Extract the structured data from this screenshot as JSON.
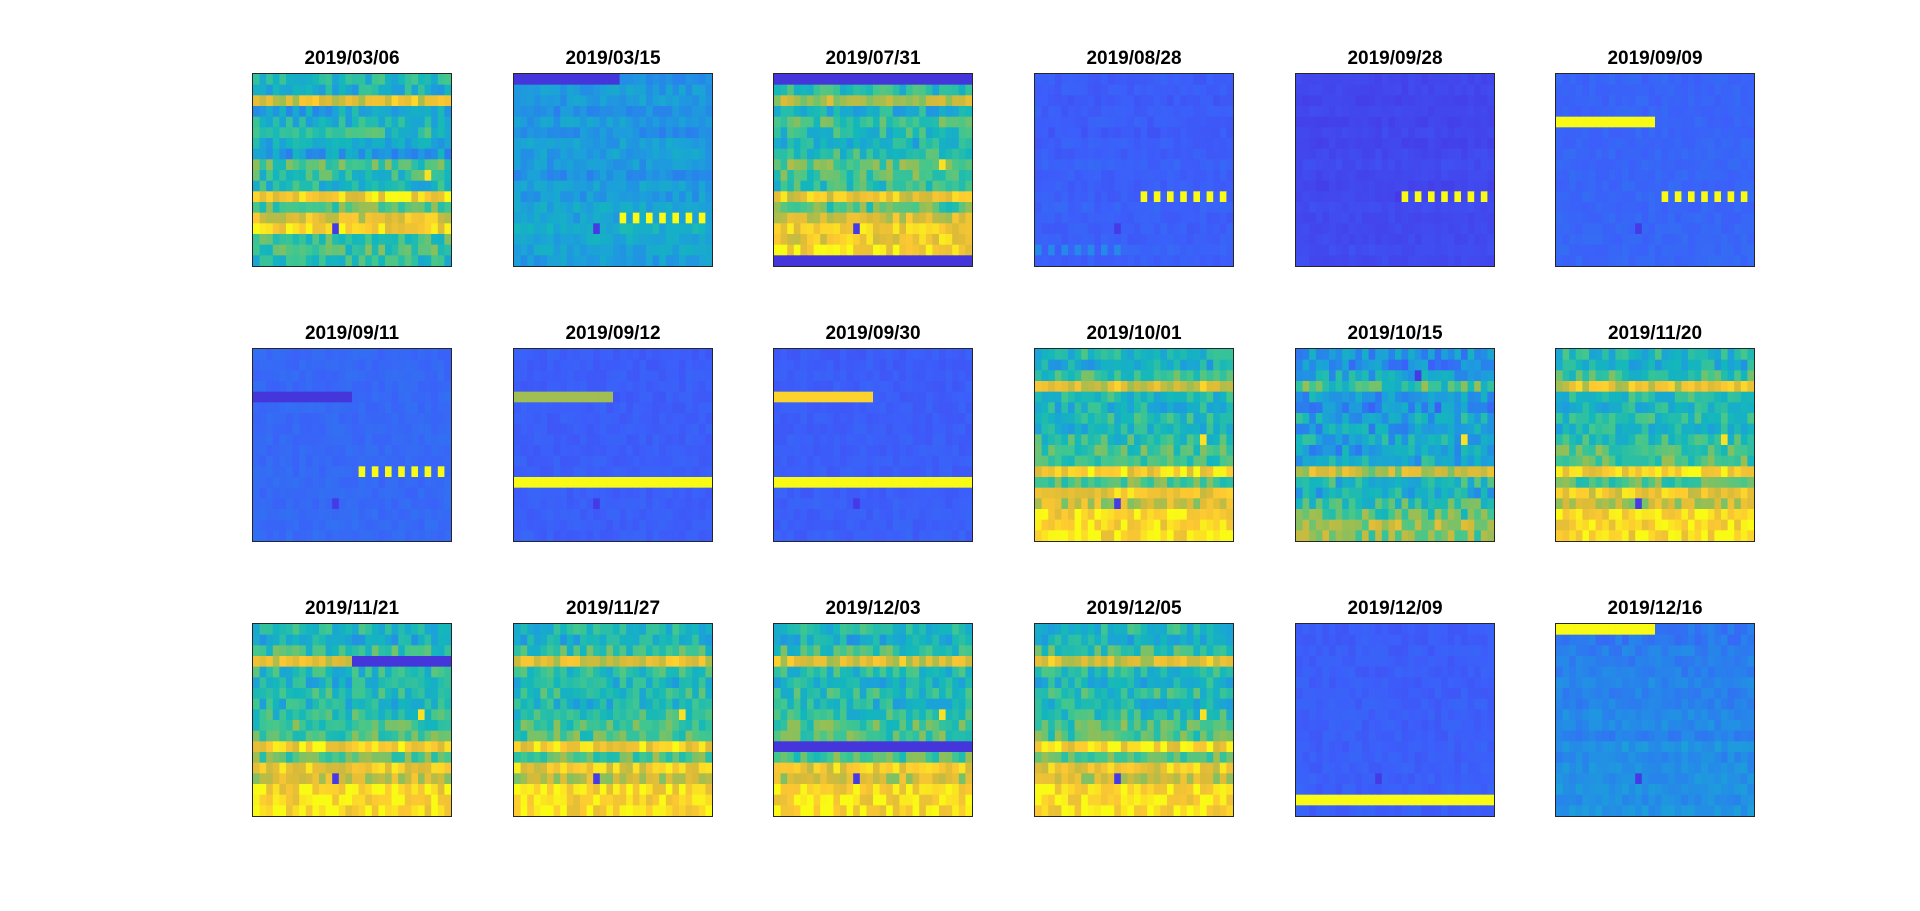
{
  "figure": {
    "colormap": "parula",
    "color_low": "#3e26a8",
    "color_high": "#f9fb15",
    "grid": false,
    "axes_ticks": false
  },
  "chart_data": [
    {
      "type": "heatmap",
      "title": "2019/03/06",
      "rows": 18,
      "cols": 30,
      "base": 0.55,
      "amp": 0.22,
      "trend": 0.18,
      "row_levels": [
        0.55,
        0.5,
        0.85,
        0.45,
        0.5,
        0.55,
        0.45,
        0.4,
        0.6,
        0.55,
        0.5,
        0.9,
        0.6,
        0.8,
        0.9,
        0.55,
        0.55,
        0.5
      ],
      "features": [
        {
          "kind": "cell",
          "row": 14,
          "col": 12,
          "level": 0.1
        },
        {
          "kind": "cell",
          "row": 9,
          "col": 26,
          "level": 0.95
        }
      ]
    },
    {
      "type": "heatmap",
      "title": "2019/03/15",
      "rows": 18,
      "cols": 30,
      "base": 0.38,
      "amp": 0.12,
      "trend": 0.1,
      "row_levels": [
        0.35,
        0.4,
        0.4,
        0.35,
        0.4,
        0.35,
        0.4,
        0.4,
        0.38,
        0.35,
        0.4,
        0.38,
        0.42,
        0.4,
        0.45,
        0.42,
        0.4,
        0.38
      ],
      "features": [
        {
          "kind": "segment",
          "row": 0,
          "start": 0,
          "end": 15,
          "level": 0.08
        },
        {
          "kind": "dashes",
          "row": 13,
          "start": 16,
          "end": 29,
          "level": 1.0
        },
        {
          "kind": "cell",
          "row": 14,
          "col": 12,
          "level": 0.1
        }
      ]
    },
    {
      "type": "heatmap",
      "title": "2019/07/31",
      "rows": 18,
      "cols": 30,
      "base": 0.58,
      "amp": 0.22,
      "trend": 0.2,
      "row_levels": [
        0.0,
        0.55,
        0.8,
        0.5,
        0.6,
        0.55,
        0.5,
        0.55,
        0.65,
        0.6,
        0.55,
        0.85,
        0.6,
        0.8,
        0.85,
        0.85,
        0.9,
        0.0
      ],
      "features": [
        {
          "kind": "band",
          "row": 0,
          "level": 0.08
        },
        {
          "kind": "band",
          "row": 17,
          "level": 0.08
        },
        {
          "kind": "cell",
          "row": 14,
          "col": 12,
          "level": 0.1
        },
        {
          "kind": "cell",
          "row": 8,
          "col": 25,
          "level": 0.95
        }
      ]
    },
    {
      "type": "heatmap",
      "title": "2019/08/28",
      "rows": 18,
      "cols": 30,
      "base": 0.2,
      "amp": 0.04,
      "trend": 0.02,
      "row_levels": [
        0.2,
        0.2,
        0.19,
        0.2,
        0.2,
        0.19,
        0.2,
        0.2,
        0.21,
        0.2,
        0.2,
        0.2,
        0.21,
        0.2,
        0.2,
        0.2,
        0.21,
        0.2
      ],
      "features": [
        {
          "kind": "dashes",
          "row": 11,
          "start": 16,
          "end": 29,
          "level": 1.0
        },
        {
          "kind": "dashes",
          "row": 16,
          "start": 0,
          "end": 13,
          "level": 0.32
        },
        {
          "kind": "cell",
          "row": 14,
          "col": 12,
          "level": 0.1
        }
      ]
    },
    {
      "type": "heatmap",
      "title": "2019/09/28",
      "rows": 18,
      "cols": 30,
      "base": 0.14,
      "amp": 0.03,
      "trend": 0.02,
      "row_levels": [
        0.14,
        0.14,
        0.13,
        0.14,
        0.13,
        0.14,
        0.13,
        0.14,
        0.15,
        0.14,
        0.13,
        0.14,
        0.15,
        0.14,
        0.14,
        0.14,
        0.15,
        0.14
      ],
      "features": [
        {
          "kind": "dashes",
          "row": 11,
          "start": 16,
          "end": 29,
          "level": 1.0
        },
        {
          "kind": "cell",
          "row": 11,
          "col": 15,
          "level": 0.1
        }
      ]
    },
    {
      "type": "heatmap",
      "title": "2019/09/09",
      "rows": 18,
      "cols": 30,
      "base": 0.22,
      "amp": 0.04,
      "trend": 0.02,
      "row_levels": [
        0.22,
        0.22,
        0.22,
        0.22,
        0.22,
        0.22,
        0.22,
        0.22,
        0.22,
        0.22,
        0.22,
        0.22,
        0.22,
        0.22,
        0.22,
        0.22,
        0.22,
        0.22
      ],
      "features": [
        {
          "kind": "segment",
          "row": 4,
          "start": 0,
          "end": 14,
          "level": 1.0
        },
        {
          "kind": "dashes",
          "row": 11,
          "start": 16,
          "end": 29,
          "level": 1.0
        },
        {
          "kind": "cell",
          "row": 14,
          "col": 12,
          "level": 0.1
        }
      ]
    },
    {
      "type": "heatmap",
      "title": "2019/09/11",
      "rows": 18,
      "cols": 30,
      "base": 0.23,
      "amp": 0.04,
      "trend": 0.02,
      "row_levels": [
        0.23,
        0.23,
        0.23,
        0.23,
        0.23,
        0.23,
        0.23,
        0.23,
        0.23,
        0.23,
        0.23,
        0.23,
        0.23,
        0.23,
        0.23,
        0.23,
        0.23,
        0.23
      ],
      "features": [
        {
          "kind": "segment",
          "row": 4,
          "start": 0,
          "end": 14,
          "level": 0.08
        },
        {
          "kind": "dashes",
          "row": 11,
          "start": 16,
          "end": 29,
          "level": 1.0
        },
        {
          "kind": "cell",
          "row": 14,
          "col": 12,
          "level": 0.1
        }
      ]
    },
    {
      "type": "heatmap",
      "title": "2019/09/12",
      "rows": 18,
      "cols": 30,
      "base": 0.2,
      "amp": 0.04,
      "trend": 0.02,
      "row_levels": [
        0.2,
        0.2,
        0.2,
        0.2,
        0.2,
        0.2,
        0.2,
        0.2,
        0.2,
        0.2,
        0.2,
        0.2,
        0.2,
        0.2,
        0.2,
        0.2,
        0.2,
        0.2
      ],
      "features": [
        {
          "kind": "segment",
          "row": 4,
          "start": 0,
          "end": 14,
          "level": 0.72
        },
        {
          "kind": "band",
          "row": 12,
          "level": 1.0
        },
        {
          "kind": "cell",
          "row": 14,
          "col": 12,
          "level": 0.1
        }
      ]
    },
    {
      "type": "heatmap",
      "title": "2019/09/30",
      "rows": 18,
      "cols": 30,
      "base": 0.2,
      "amp": 0.04,
      "trend": 0.02,
      "row_levels": [
        0.2,
        0.2,
        0.2,
        0.2,
        0.2,
        0.2,
        0.2,
        0.2,
        0.2,
        0.2,
        0.2,
        0.2,
        0.2,
        0.2,
        0.2,
        0.2,
        0.2,
        0.2
      ],
      "features": [
        {
          "kind": "segment",
          "row": 4,
          "start": 0,
          "end": 14,
          "level": 0.92
        },
        {
          "kind": "band",
          "row": 12,
          "level": 1.0
        },
        {
          "kind": "cell",
          "row": 14,
          "col": 12,
          "level": 0.1
        }
      ]
    },
    {
      "type": "heatmap",
      "title": "2019/10/01",
      "rows": 18,
      "cols": 30,
      "base": 0.6,
      "amp": 0.22,
      "trend": 0.22,
      "row_levels": [
        0.55,
        0.5,
        0.6,
        0.85,
        0.55,
        0.5,
        0.55,
        0.5,
        0.55,
        0.6,
        0.6,
        0.9,
        0.6,
        0.85,
        0.75,
        0.9,
        0.9,
        0.9
      ],
      "features": [
        {
          "kind": "cell",
          "row": 14,
          "col": 12,
          "level": 0.1
        },
        {
          "kind": "cell",
          "row": 8,
          "col": 25,
          "level": 0.95
        }
      ]
    },
    {
      "type": "heatmap",
      "title": "2019/10/15",
      "rows": 18,
      "cols": 30,
      "base": 0.42,
      "amp": 0.26,
      "trend": 0.12,
      "row_levels": [
        0.4,
        0.35,
        0.45,
        0.6,
        0.4,
        0.35,
        0.45,
        0.4,
        0.45,
        0.4,
        0.45,
        0.75,
        0.5,
        0.45,
        0.55,
        0.6,
        0.7,
        0.65
      ],
      "features": [
        {
          "kind": "cell",
          "row": 2,
          "col": 18,
          "level": 0.1
        },
        {
          "kind": "cell",
          "row": 8,
          "col": 25,
          "level": 0.95
        }
      ]
    },
    {
      "type": "heatmap",
      "title": "2019/11/20",
      "rows": 18,
      "cols": 30,
      "base": 0.6,
      "amp": 0.22,
      "trend": 0.22,
      "row_levels": [
        0.55,
        0.5,
        0.6,
        0.85,
        0.55,
        0.5,
        0.55,
        0.5,
        0.55,
        0.6,
        0.6,
        0.9,
        0.6,
        0.85,
        0.75,
        0.9,
        0.9,
        0.9
      ],
      "features": [
        {
          "kind": "cell",
          "row": 14,
          "col": 12,
          "level": 0.1
        },
        {
          "kind": "cell",
          "row": 8,
          "col": 25,
          "level": 0.95
        }
      ]
    },
    {
      "type": "heatmap",
      "title": "2019/11/21",
      "rows": 18,
      "cols": 30,
      "base": 0.6,
      "amp": 0.22,
      "trend": 0.22,
      "row_levels": [
        0.55,
        0.5,
        0.6,
        0.85,
        0.55,
        0.5,
        0.55,
        0.5,
        0.55,
        0.6,
        0.6,
        0.9,
        0.6,
        0.85,
        0.75,
        0.9,
        0.9,
        0.9
      ],
      "features": [
        {
          "kind": "segment",
          "row": 3,
          "start": 15,
          "end": 29,
          "level": 0.08
        },
        {
          "kind": "cell",
          "row": 14,
          "col": 12,
          "level": 0.1
        },
        {
          "kind": "cell",
          "row": 8,
          "col": 25,
          "level": 0.95
        }
      ]
    },
    {
      "type": "heatmap",
      "title": "2019/11/27",
      "rows": 18,
      "cols": 30,
      "base": 0.6,
      "amp": 0.22,
      "trend": 0.22,
      "row_levels": [
        0.55,
        0.5,
        0.6,
        0.85,
        0.55,
        0.5,
        0.55,
        0.5,
        0.55,
        0.6,
        0.6,
        0.9,
        0.6,
        0.85,
        0.75,
        0.9,
        0.9,
        0.9
      ],
      "features": [
        {
          "kind": "cell",
          "row": 14,
          "col": 12,
          "level": 0.1
        },
        {
          "kind": "cell",
          "row": 8,
          "col": 25,
          "level": 0.95
        }
      ]
    },
    {
      "type": "heatmap",
      "title": "2019/12/03",
      "rows": 18,
      "cols": 30,
      "base": 0.6,
      "amp": 0.22,
      "trend": 0.22,
      "row_levels": [
        0.55,
        0.5,
        0.6,
        0.85,
        0.55,
        0.5,
        0.55,
        0.5,
        0.55,
        0.6,
        0.6,
        0.9,
        0.6,
        0.85,
        0.75,
        0.9,
        0.9,
        0.9
      ],
      "features": [
        {
          "kind": "band",
          "row": 11,
          "level": 0.08
        },
        {
          "kind": "cell",
          "row": 14,
          "col": 12,
          "level": 0.1
        },
        {
          "kind": "cell",
          "row": 8,
          "col": 25,
          "level": 0.95
        }
      ]
    },
    {
      "type": "heatmap",
      "title": "2019/12/05",
      "rows": 18,
      "cols": 30,
      "base": 0.6,
      "amp": 0.22,
      "trend": 0.22,
      "row_levels": [
        0.55,
        0.5,
        0.6,
        0.85,
        0.55,
        0.5,
        0.55,
        0.5,
        0.55,
        0.6,
        0.6,
        0.9,
        0.6,
        0.85,
        0.75,
        0.9,
        0.9,
        0.9
      ],
      "features": [
        {
          "kind": "cell",
          "row": 14,
          "col": 12,
          "level": 0.1
        },
        {
          "kind": "cell",
          "row": 8,
          "col": 25,
          "level": 0.95
        }
      ]
    },
    {
      "type": "heatmap",
      "title": "2019/12/09",
      "rows": 18,
      "cols": 30,
      "base": 0.2,
      "amp": 0.04,
      "trend": 0.02,
      "row_levels": [
        0.2,
        0.2,
        0.2,
        0.2,
        0.2,
        0.2,
        0.2,
        0.2,
        0.2,
        0.2,
        0.2,
        0.2,
        0.2,
        0.2,
        0.2,
        0.2,
        0.2,
        0.2
      ],
      "features": [
        {
          "kind": "band",
          "row": 16,
          "level": 1.0
        },
        {
          "kind": "cell",
          "row": 14,
          "col": 12,
          "level": 0.1
        }
      ]
    },
    {
      "type": "heatmap",
      "title": "2019/12/16",
      "rows": 18,
      "cols": 30,
      "base": 0.3,
      "amp": 0.08,
      "trend": 0.05,
      "row_levels": [
        0.28,
        0.28,
        0.3,
        0.3,
        0.3,
        0.32,
        0.3,
        0.3,
        0.33,
        0.33,
        0.3,
        0.36,
        0.32,
        0.34,
        0.34,
        0.35,
        0.33,
        0.35
      ],
      "features": [
        {
          "kind": "segment",
          "row": 0,
          "start": 0,
          "end": 14,
          "level": 1.0
        },
        {
          "kind": "cell",
          "row": 14,
          "col": 12,
          "level": 0.1
        }
      ]
    }
  ]
}
